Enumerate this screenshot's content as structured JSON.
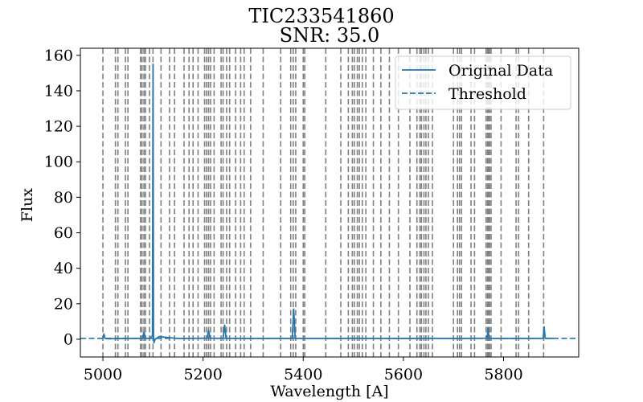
{
  "chart_data": {
    "type": "line",
    "title": "TIC233541860",
    "subtitle": "SNR: 35.0",
    "xlabel": "Wavelength [A]",
    "ylabel": "Flux",
    "xlim": [
      4955,
      5950
    ],
    "ylim": [
      -10,
      164
    ],
    "x_ticks": [
      5000,
      5200,
      5400,
      5600,
      5800
    ],
    "y_ticks": [
      0,
      20,
      40,
      60,
      80,
      100,
      120,
      140,
      160
    ],
    "grid": false,
    "legend_position": "top-right",
    "colors": {
      "data": "#1f77b4",
      "threshold": "#1f77b4",
      "lines": "#808080"
    },
    "threshold": 0.5,
    "series": [
      {
        "name": "Original Data",
        "x": [
          5000,
          5002,
          5004,
          5010,
          5050,
          5079,
          5082,
          5085,
          5094,
          5097,
          5099,
          5100,
          5101,
          5102,
          5103,
          5105,
          5108,
          5112,
          5150,
          5208,
          5211,
          5214,
          5240,
          5243,
          5246,
          5300,
          5378,
          5381,
          5384,
          5450,
          5500,
          5600,
          5650,
          5710,
          5740,
          5767,
          5769,
          5771,
          5775,
          5820,
          5879,
          5881,
          5883,
          5900
        ],
        "y": [
          0.5,
          3,
          0.5,
          0.3,
          0.4,
          0.5,
          4,
          0.5,
          0.4,
          1.5,
          2,
          155,
          1,
          -2,
          -1,
          0.3,
          0.6,
          1.5,
          0.4,
          0.6,
          5,
          0.6,
          0.5,
          8,
          0.5,
          0.4,
          0.5,
          17,
          0.5,
          0.4,
          0.5,
          0.4,
          0.5,
          0.4,
          0.5,
          0.6,
          6,
          0.6,
          0.5,
          0.4,
          0.5,
          7,
          0.5,
          0.5
        ]
      },
      {
        "name": "Threshold"
      }
    ],
    "vertical_lines": [
      5000,
      5025,
      5030,
      5045,
      5050,
      5075,
      5078,
      5082,
      5085,
      5093,
      5100,
      5116,
      5133,
      5143,
      5162,
      5172,
      5180,
      5190,
      5203,
      5207,
      5211,
      5215,
      5222,
      5236,
      5240,
      5247,
      5253,
      5265,
      5275,
      5282,
      5295,
      5320,
      5355,
      5375,
      5380,
      5385,
      5400,
      5403,
      5445,
      5475,
      5490,
      5498,
      5502,
      5508,
      5512,
      5518,
      5525,
      5540,
      5555,
      5572,
      5590,
      5613,
      5627,
      5633,
      5636,
      5641,
      5645,
      5650,
      5658,
      5700,
      5708,
      5712,
      5716,
      5735,
      5742,
      5765,
      5768,
      5770,
      5772,
      5775,
      5795,
      5825,
      5830,
      5850,
      5880
    ]
  }
}
